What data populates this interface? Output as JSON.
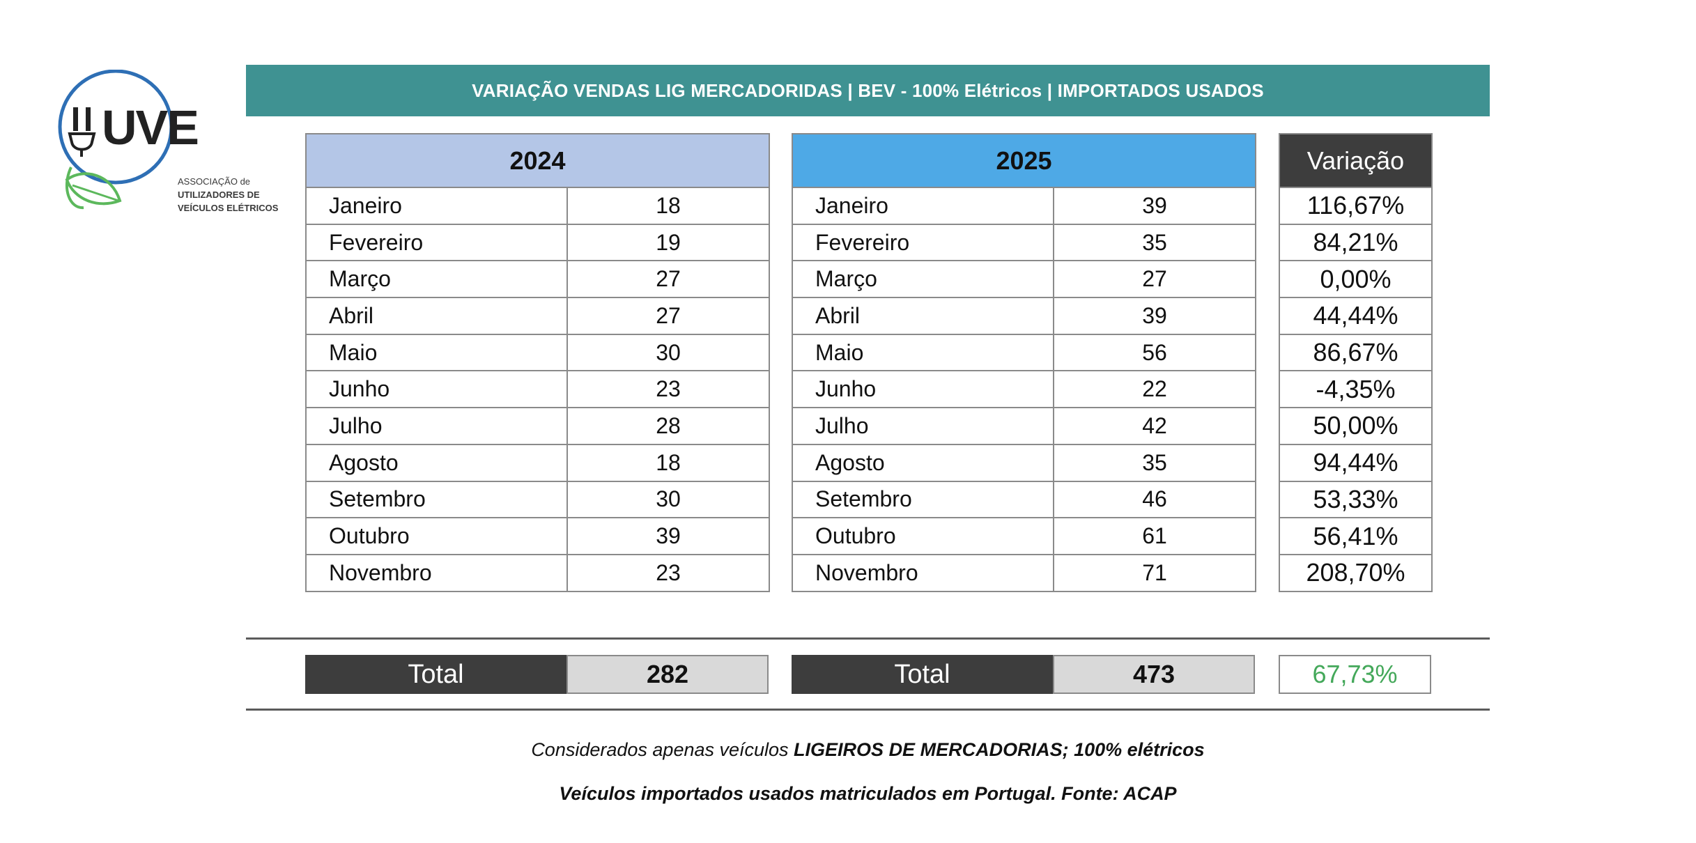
{
  "logo": {
    "wordmark": "UVE",
    "lines": [
      "ASSOCIAÇÃO de",
      "UTILIZADORES DE",
      "VEÍCULOS ELÉTRICOS"
    ],
    "colors": {
      "ring": "#2e6fb5",
      "leaf": "#5cb85c",
      "text": "#222222"
    }
  },
  "title": "VARIAÇÃO VENDAS LIG MERCADORIDAS | BEV - 100% Elétricos | IMPORTADOS USADOS",
  "year_2024": {
    "header": "2024",
    "rows": [
      {
        "month": "Janeiro",
        "value": "18"
      },
      {
        "month": "Fevereiro",
        "value": "19"
      },
      {
        "month": "Março",
        "value": "27"
      },
      {
        "month": "Abril",
        "value": "27"
      },
      {
        "month": "Maio",
        "value": "30"
      },
      {
        "month": "Junho",
        "value": "23"
      },
      {
        "month": "Julho",
        "value": "28"
      },
      {
        "month": "Agosto",
        "value": "18"
      },
      {
        "month": "Setembro",
        "value": "30"
      },
      {
        "month": "Outubro",
        "value": "39"
      },
      {
        "month": "Novembro",
        "value": "23"
      }
    ],
    "total_label": "Total",
    "total_value": "282"
  },
  "year_2025": {
    "header": "2025",
    "rows": [
      {
        "month": "Janeiro",
        "value": "39"
      },
      {
        "month": "Fevereiro",
        "value": "35"
      },
      {
        "month": "Março",
        "value": "27"
      },
      {
        "month": "Abril",
        "value": "39"
      },
      {
        "month": "Maio",
        "value": "56"
      },
      {
        "month": "Junho",
        "value": "22"
      },
      {
        "month": "Julho",
        "value": "42"
      },
      {
        "month": "Agosto",
        "value": "35"
      },
      {
        "month": "Setembro",
        "value": "46"
      },
      {
        "month": "Outubro",
        "value": "61"
      },
      {
        "month": "Novembro",
        "value": "71"
      }
    ],
    "total_label": "Total",
    "total_value": "473"
  },
  "variation": {
    "header": "Variação",
    "rows": [
      "116,67%",
      "84,21%",
      "0,00%",
      "44,44%",
      "86,67%",
      "-4,35%",
      "50,00%",
      "94,44%",
      "53,33%",
      "56,41%",
      "208,70%"
    ],
    "total": "67,73%",
    "colors": {
      "positive": "#44a85a",
      "negative": "#e0302b"
    }
  },
  "notes": {
    "line1_prefix": "Considerados apenas veículos ",
    "line1_bold": "LIGEIROS DE MERCADORIAS; 100% elétricos",
    "line2": "Veículos importados usados matriculados em Portugal. Fonte: ACAP"
  },
  "colors": {
    "title_bar": "#3f9292",
    "header_2024": "#b4c6e7",
    "header_2025": "#4ea9e6",
    "dark_cell": "#3d3d3d",
    "total_value_bg": "#d9d9d9"
  }
}
